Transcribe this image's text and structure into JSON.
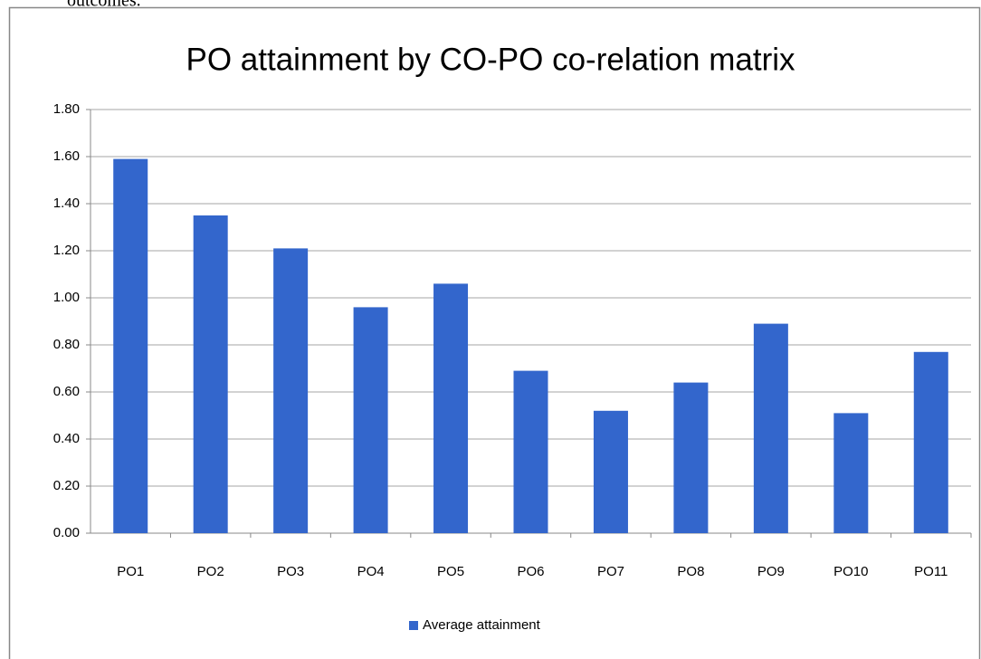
{
  "page_text": "outcomes.",
  "chart_data": {
    "type": "bar",
    "title": "PO attainment by CO-PO co-relation matrix",
    "categories": [
      "PO1",
      "PO2",
      "PO3",
      "PO4",
      "PO5",
      "PO6",
      "PO7",
      "PO8",
      "PO9",
      "PO10",
      "PO11"
    ],
    "series": [
      {
        "name": "Average attainment",
        "color": "#3366cc",
        "values": [
          1.59,
          1.35,
          1.21,
          0.96,
          1.06,
          0.69,
          0.52,
          0.64,
          0.89,
          0.51,
          0.77
        ]
      }
    ],
    "ylim": [
      0,
      1.8
    ],
    "yticks": [
      {
        "value": 0,
        "label": "0.00"
      },
      {
        "value": 0.2,
        "label": "0.20"
      },
      {
        "value": 0.4,
        "label": "0.40"
      },
      {
        "value": 0.6,
        "label": "0.60"
      },
      {
        "value": 0.8,
        "label": "0.80"
      },
      {
        "value": 1,
        "label": "1.00"
      },
      {
        "value": 1.2,
        "label": "1.20"
      },
      {
        "value": 1.4,
        "label": "1.40"
      },
      {
        "value": 1.6,
        "label": "1.60"
      },
      {
        "value": 1.8,
        "label": "1.80"
      }
    ],
    "grid": true,
    "legend": "bottom"
  }
}
